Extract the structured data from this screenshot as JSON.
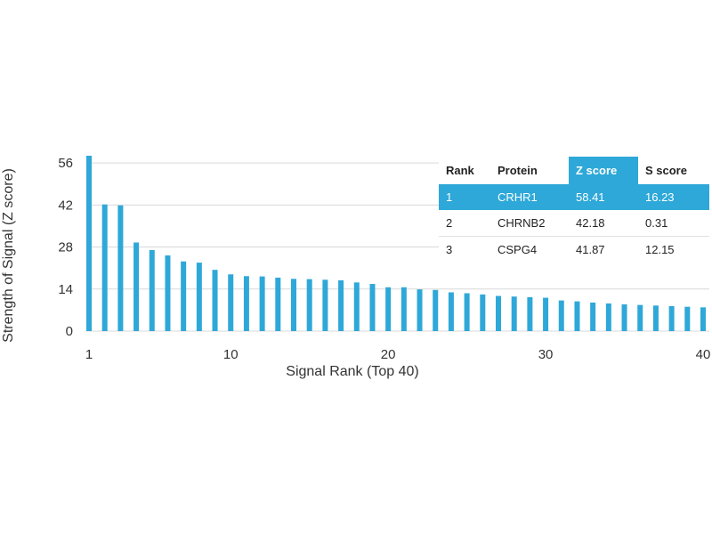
{
  "chart_data": {
    "type": "bar",
    "xlabel": "Signal Rank (Top 40)",
    "ylabel": "Strength of Signal (Z score)",
    "ylim": [
      0,
      58.41
    ],
    "yticks": [
      0,
      14,
      28,
      42,
      56
    ],
    "xticks": [
      1,
      10,
      20,
      30,
      40
    ],
    "grid": "horizontal",
    "bar_color": "#2ea8d8",
    "x": [
      1,
      2,
      3,
      4,
      5,
      6,
      7,
      8,
      9,
      10,
      11,
      12,
      13,
      14,
      15,
      16,
      17,
      18,
      19,
      20,
      21,
      22,
      23,
      24,
      25,
      26,
      27,
      28,
      29,
      30,
      31,
      32,
      33,
      34,
      35,
      36,
      37,
      38,
      39,
      40
    ],
    "values": [
      58.41,
      42.18,
      41.87,
      29.5,
      27.0,
      25.2,
      23.2,
      22.8,
      20.4,
      18.9,
      18.3,
      18.2,
      17.8,
      17.4,
      17.3,
      17.1,
      16.9,
      16.2,
      15.7,
      14.6,
      14.6,
      13.9,
      13.7,
      12.9,
      12.6,
      12.2,
      11.7,
      11.5,
      11.3,
      11.1,
      10.2,
      9.9,
      9.5,
      9.2,
      8.9,
      8.7,
      8.5,
      8.3,
      8.1,
      7.9
    ]
  },
  "table": {
    "headers": [
      "Rank",
      "Protein",
      "Z score",
      "S score"
    ],
    "rows": [
      [
        "1",
        "CRHR1",
        "58.41",
        "16.23"
      ],
      [
        "2",
        "CHRNB2",
        "42.18",
        "0.31"
      ],
      [
        "3",
        "CSPG4",
        "41.87",
        "12.15"
      ]
    ]
  }
}
